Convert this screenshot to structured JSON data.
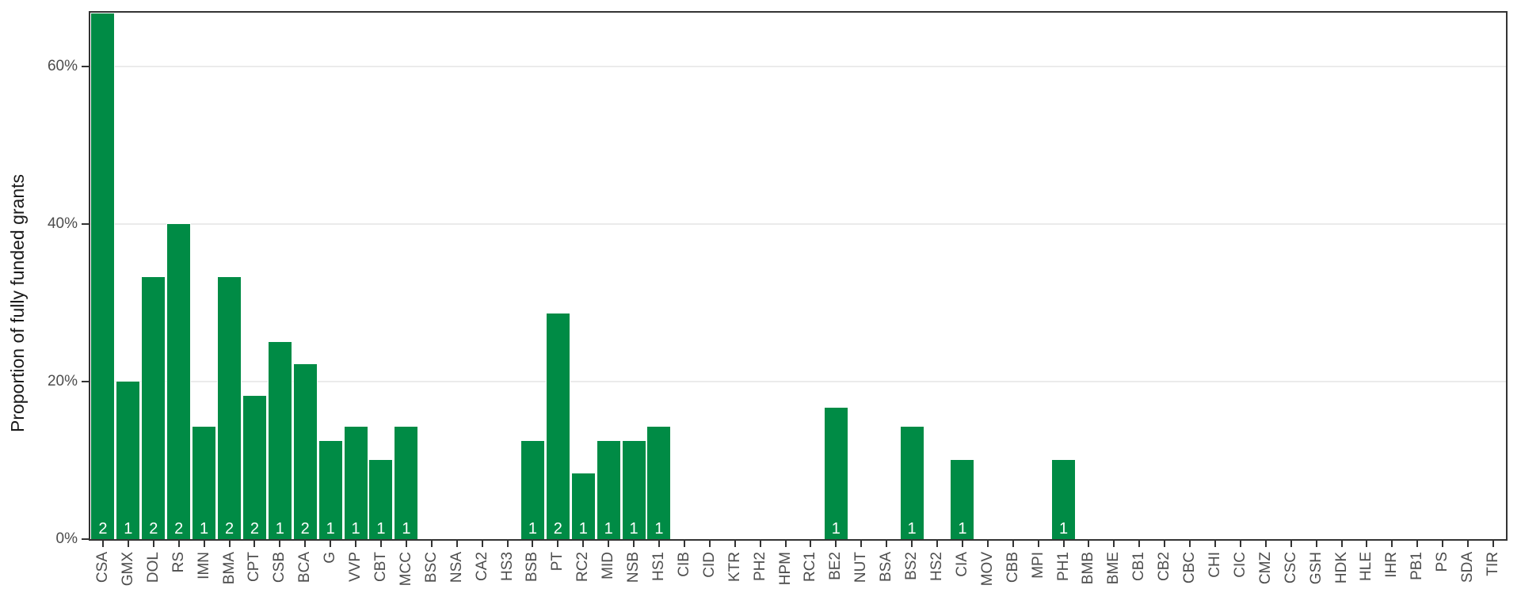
{
  "chart_data": {
    "type": "bar",
    "title": "",
    "ylabel": "Proportion of fully funded grants",
    "xlabel": "",
    "ylim": [
      0,
      66.8
    ],
    "y_ticks": [
      0,
      20,
      40,
      60
    ],
    "y_tick_labels": [
      "0%",
      "20%",
      "40%",
      "60%"
    ],
    "grid": "horizontal major gridlines only",
    "legend": "none",
    "x_label_rotation_deg": 90,
    "categories": [
      "CSA",
      "GMX",
      "DOL",
      "RS",
      "IMN",
      "BMA",
      "CPT",
      "CSB",
      "BCA",
      "G",
      "VVP",
      "CBT",
      "MCC",
      "BSC",
      "NSA",
      "CA2",
      "HS3",
      "BSB",
      "PT",
      "RC2",
      "MID",
      "NSB",
      "HS1",
      "CIB",
      "CID",
      "KTR",
      "PH2",
      "HPM",
      "RC1",
      "BE2",
      "NUT",
      "BSA",
      "BS2",
      "HS2",
      "CIA",
      "MOV",
      "CBB",
      "MPI",
      "PH1",
      "BMB",
      "BME",
      "CB1",
      "CB2",
      "CBC",
      "CHI",
      "CIC",
      "CMZ",
      "CSC",
      "GSH",
      "HDK",
      "HLE",
      "IHR",
      "PB1",
      "PS",
      "SDA",
      "TIR"
    ],
    "values": [
      66.7,
      20,
      33.3,
      40,
      14.3,
      33.3,
      18.2,
      25,
      22.2,
      12.5,
      14.3,
      10,
      14.3,
      0,
      0,
      0,
      0,
      12.5,
      28.6,
      8.3,
      12.5,
      12.5,
      14.3,
      0,
      0,
      0,
      0,
      0,
      0,
      16.7,
      0,
      0,
      14.3,
      0,
      10,
      0,
      0,
      0,
      10,
      0,
      0,
      0,
      0,
      0,
      0,
      0,
      0,
      0,
      0,
      0,
      0,
      0,
      0,
      0,
      0,
      0
    ],
    "bar_labels": [
      "2",
      "1",
      "2",
      "2",
      "1",
      "2",
      "2",
      "1",
      "2",
      "1",
      "1",
      "1",
      "1",
      "",
      "",
      "",
      "",
      "1",
      "2",
      "1",
      "1",
      "1",
      "1",
      "",
      "",
      "",
      "",
      "",
      "",
      "1",
      "",
      "",
      "1",
      "",
      "1",
      "",
      "",
      "",
      "1",
      "",
      "",
      "",
      "",
      "",
      "",
      "",
      "",
      "",
      "",
      "",
      "",
      "",
      "",
      "",
      "",
      ""
    ],
    "colors": {
      "bar": "#008B45",
      "bar_label": "#FFFFFF",
      "gridline": "#EBEBEB",
      "axis_line": "#333333",
      "tick_text": "#4D4D4D",
      "axis_title_text": "#1A1A1A",
      "background": "#FFFFFF"
    }
  }
}
